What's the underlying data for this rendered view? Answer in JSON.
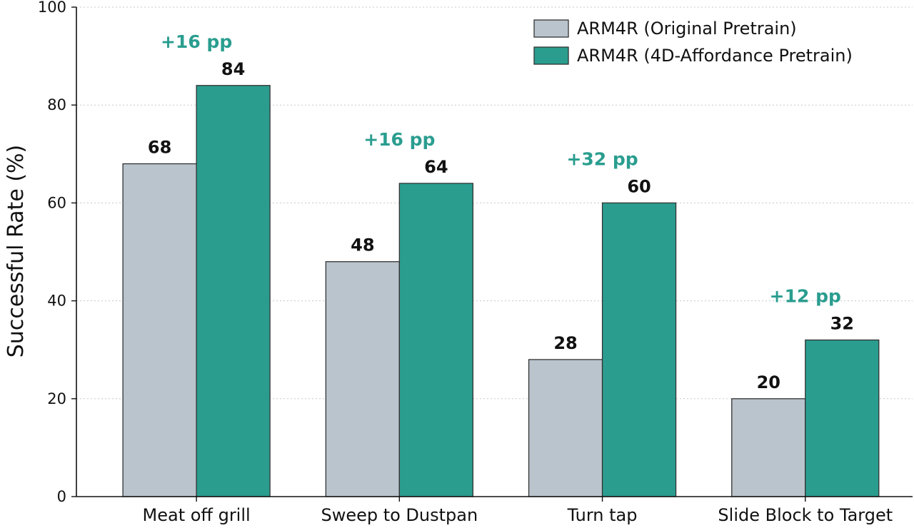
{
  "chart_data": {
    "type": "bar",
    "title": "",
    "xlabel": "",
    "ylabel": "Successful Rate (%)",
    "ylim": [
      0,
      100
    ],
    "yticks": [
      0,
      20,
      40,
      60,
      80,
      100
    ],
    "grid": "horizontal dotted",
    "legend_position": "top-right",
    "categories": [
      "Meat off grill",
      "Sweep to Dustpan",
      "Turn tap",
      "Slide Block to Target"
    ],
    "series": [
      {
        "name": "ARM4R (Original Pretrain)",
        "color": "#bac4cd",
        "values": [
          68,
          48,
          28,
          20
        ]
      },
      {
        "name": "ARM4R (4D-Affordance Pretrain)",
        "color": "#2a9d8f",
        "values": [
          84,
          64,
          60,
          32
        ]
      }
    ],
    "annotations": [
      "+16 pp",
      "+16 pp",
      "+32 pp",
      "+12 pp"
    ],
    "annotation_color": "#2a9d8f"
  }
}
